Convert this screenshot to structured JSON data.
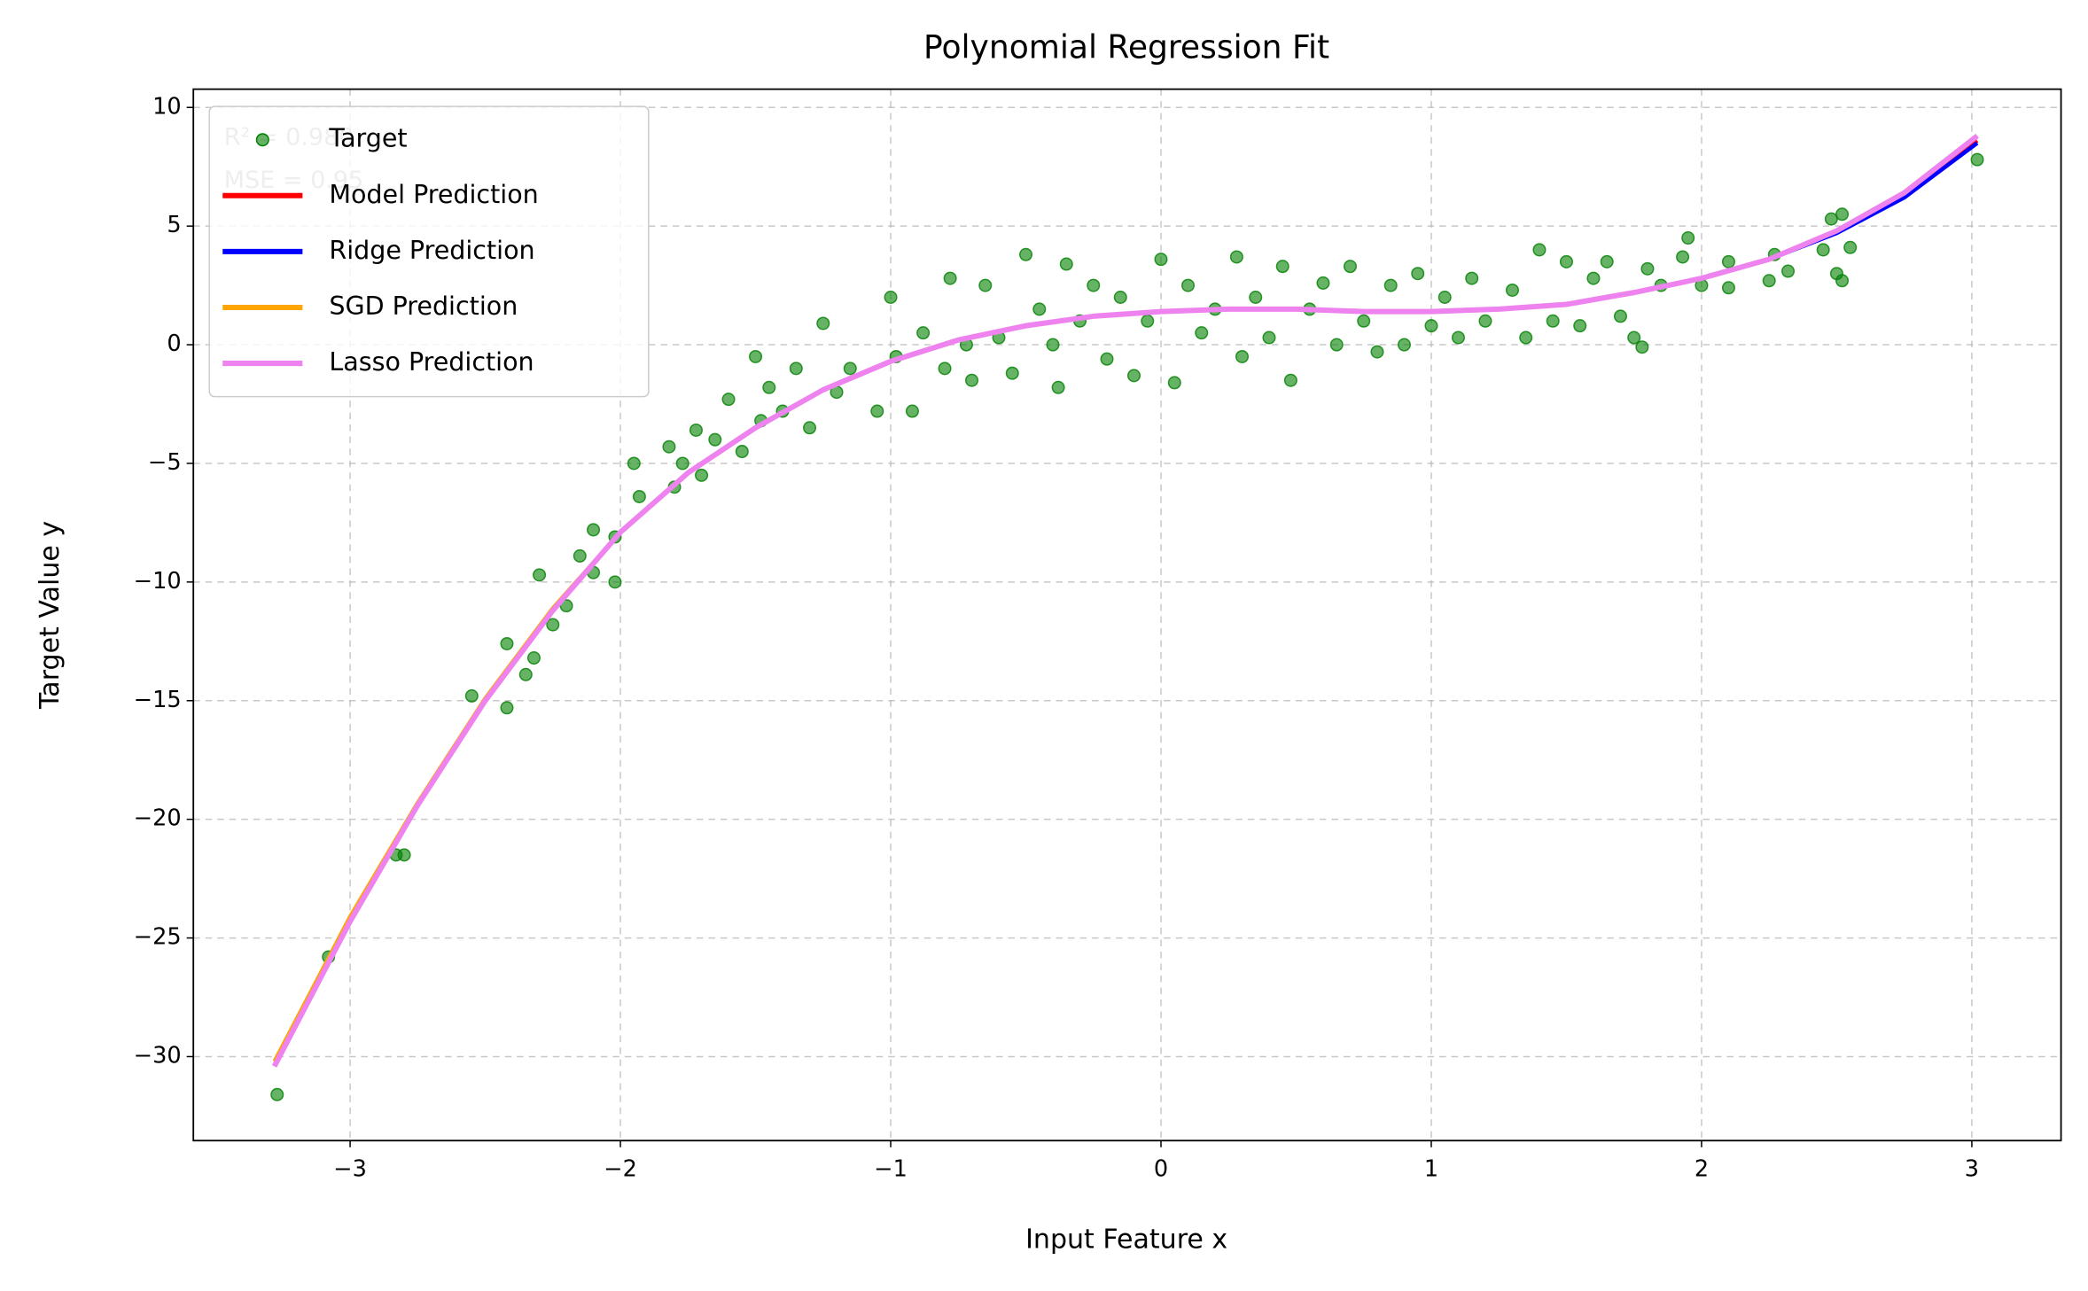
{
  "chart_data": {
    "type": "line",
    "title": "Polynomial Regression Fit",
    "xlabel": "Input Feature x",
    "ylabel": "Target Value y",
    "annotations": [
      "R² = 0.980",
      "MSE = 0.95"
    ],
    "xlim": [
      -3.58,
      3.33
    ],
    "ylim": [
      -33.54,
      10.77
    ],
    "xticks": [
      {
        "value": -3,
        "label": "−3"
      },
      {
        "value": -2,
        "label": "−2"
      },
      {
        "value": -1,
        "label": "−1"
      },
      0,
      1,
      2,
      3
    ],
    "yticks": [
      {
        "value": -30,
        "label": "−30"
      },
      {
        "value": -25,
        "label": "−25"
      },
      {
        "value": -20,
        "label": "−20"
      },
      {
        "value": -15,
        "label": "−15"
      },
      {
        "value": -10,
        "label": "−10"
      },
      {
        "value": -5,
        "label": "−5"
      },
      0,
      5,
      10
    ],
    "grid": true,
    "legend": "upper left",
    "x": [
      -3.28,
      -3.0,
      -2.75,
      -2.5,
      -2.25,
      -2.0,
      -1.75,
      -1.5,
      -1.25,
      -1.0,
      -0.75,
      -0.5,
      -0.25,
      0,
      0.25,
      0.5,
      0.75,
      1.0,
      1.25,
      1.5,
      1.75,
      2.0,
      2.25,
      2.5,
      2.75,
      3.02
    ],
    "series": [
      {
        "name": "Target",
        "style": "scatter",
        "color": "#008000",
        "x": [
          -3.27,
          -3.08,
          -2.83,
          -2.8,
          -2.55,
          -2.42,
          -2.42,
          -2.35,
          -2.3,
          -2.32,
          -2.2,
          -2.25,
          -2.15,
          -2.1,
          -2.1,
          -2.02,
          -2.02,
          -1.95,
          -1.93,
          -1.82,
          -1.8,
          -1.77,
          -1.72,
          -1.7,
          -1.65,
          -1.6,
          -1.55,
          -1.5,
          -1.48,
          -1.45,
          -1.4,
          -1.35,
          -1.3,
          -1.25,
          -1.2,
          -1.15,
          -1.05,
          -1.0,
          -0.98,
          -0.92,
          -0.88,
          -0.8,
          -0.78,
          -0.72,
          -0.7,
          -0.65,
          -0.6,
          -0.55,
          -0.5,
          -0.45,
          -0.4,
          -0.38,
          -0.35,
          -0.3,
          -0.25,
          -0.2,
          -0.15,
          -0.1,
          -0.05,
          0.0,
          0.05,
          0.1,
          0.15,
          0.2,
          0.28,
          0.3,
          0.35,
          0.4,
          0.45,
          0.48,
          0.55,
          0.6,
          0.65,
          0.7,
          0.75,
          0.8,
          0.85,
          0.9,
          0.95,
          1.0,
          1.05,
          1.1,
          1.15,
          1.2,
          1.3,
          1.35,
          1.4,
          1.45,
          1.5,
          1.55,
          1.6,
          1.65,
          1.7,
          1.75,
          1.78,
          1.8,
          1.85,
          1.93,
          1.95,
          2.0,
          2.1,
          2.1,
          2.25,
          2.27,
          2.32,
          2.45,
          2.48,
          2.5,
          2.52,
          2.55,
          2.52,
          3.02
        ],
        "values": [
          -31.6,
          -25.8,
          -21.5,
          -21.5,
          -14.8,
          -15.3,
          -12.6,
          -13.9,
          -9.7,
          -13.2,
          -11.0,
          -11.8,
          -8.9,
          -7.8,
          -9.6,
          -8.1,
          -10.0,
          -5.0,
          -6.4,
          -4.3,
          -6.0,
          -5.0,
          -3.6,
          -5.5,
          -4.0,
          -2.3,
          -4.5,
          -0.5,
          -3.2,
          -1.8,
          -2.8,
          -1.0,
          -3.5,
          0.9,
          -2.0,
          -1.0,
          -2.8,
          2.0,
          -0.5,
          -2.8,
          0.5,
          -1.0,
          2.8,
          0.0,
          -1.5,
          2.5,
          0.3,
          -1.2,
          3.8,
          1.5,
          0.0,
          -1.8,
          3.4,
          1.0,
          2.5,
          -0.6,
          2.0,
          -1.3,
          1.0,
          3.6,
          -1.6,
          2.5,
          0.5,
          1.5,
          3.7,
          -0.5,
          2.0,
          0.3,
          3.3,
          -1.5,
          1.5,
          2.6,
          0.0,
          3.3,
          1.0,
          -0.3,
          2.5,
          0.0,
          3.0,
          0.8,
          2.0,
          0.3,
          2.8,
          1.0,
          2.3,
          0.3,
          4.0,
          1.0,
          3.5,
          0.8,
          2.8,
          3.5,
          1.2,
          0.3,
          -0.1,
          3.2,
          2.5,
          3.7,
          4.5,
          2.5,
          3.5,
          2.4,
          2.7,
          3.8,
          3.1,
          4.0,
          5.3,
          3.0,
          5.5,
          4.1,
          2.7,
          7.8
        ]
      },
      {
        "name": "Model Prediction",
        "style": "line",
        "color": "#ff0000",
        "values": [
          -30.4,
          -24.3,
          -19.4,
          -15.0,
          -11.2,
          -7.9,
          -5.4,
          -3.5,
          -1.9,
          -0.7,
          0.2,
          0.8,
          1.2,
          1.4,
          1.5,
          1.5,
          1.4,
          1.4,
          1.5,
          1.7,
          2.2,
          2.8,
          3.6,
          4.8,
          6.3,
          8.6
        ]
      },
      {
        "name": "Ridge Prediction",
        "style": "line",
        "color": "#0000ff",
        "values": [
          -30.4,
          -24.3,
          -19.4,
          -15.0,
          -11.2,
          -7.9,
          -5.4,
          -3.5,
          -1.9,
          -0.7,
          0.2,
          0.8,
          1.2,
          1.4,
          1.5,
          1.5,
          1.4,
          1.4,
          1.5,
          1.7,
          2.2,
          2.8,
          3.6,
          4.7,
          6.2,
          8.5
        ]
      },
      {
        "name": "SGD Prediction",
        "style": "line",
        "color": "#ffa500",
        "values": [
          -30.2,
          -24.1,
          -19.3,
          -14.9,
          -11.1,
          -7.9,
          -5.4,
          -3.5,
          -1.9,
          -0.7,
          0.2,
          0.8,
          1.2,
          1.4,
          1.5,
          1.5,
          1.4,
          1.4,
          1.5,
          1.7,
          2.2,
          2.8,
          3.6,
          4.8,
          6.4,
          8.8
        ]
      },
      {
        "name": "Lasso Prediction",
        "style": "line",
        "color": "#ee82ee",
        "values": [
          -30.4,
          -24.3,
          -19.4,
          -15.0,
          -11.2,
          -7.9,
          -5.4,
          -3.5,
          -1.9,
          -0.7,
          0.2,
          0.8,
          1.2,
          1.4,
          1.5,
          1.5,
          1.4,
          1.4,
          1.5,
          1.7,
          2.2,
          2.8,
          3.6,
          4.8,
          6.4,
          8.8
        ]
      }
    ]
  }
}
